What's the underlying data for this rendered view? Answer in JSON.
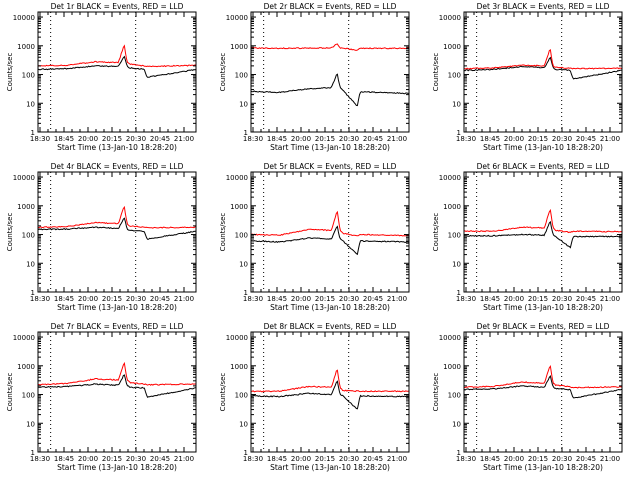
{
  "chart_data": [
    {
      "type": "line",
      "title": "Det 1r BLACK = Events, RED = LLD",
      "xlabel": "Start Time (13-Jan-10 18:28:20)",
      "ylabel": "Counts/sec",
      "yscale": "log",
      "ylim": [
        1,
        15000
      ],
      "xlim": [
        18.5,
        21.25
      ],
      "x_tick_labels": [
        "18:30",
        "18:45",
        "20:00",
        "20:15",
        "20:30",
        "20:45",
        "21:00"
      ],
      "y_tick_labels": [
        "1",
        "10",
        "100",
        "1000",
        "10000"
      ],
      "vertical_markers": [
        18.72,
        20.2
      ],
      "series": [
        {
          "name": "Events",
          "color": "#000000",
          "x": [
            18.5,
            19.0,
            19.5,
            19.9,
            20.0,
            20.05,
            20.1,
            20.35,
            20.4,
            21.25
          ],
          "y": [
            150,
            160,
            200,
            190,
            450,
            190,
            170,
            150,
            80,
            150
          ]
        },
        {
          "name": "LLD",
          "color": "#ff0000",
          "x": [
            18.5,
            19.0,
            19.5,
            19.9,
            20.0,
            20.05,
            20.1,
            20.35,
            20.4,
            21.25
          ],
          "y": [
            200,
            210,
            280,
            260,
            1100,
            260,
            230,
            200,
            190,
            210
          ]
        }
      ]
    },
    {
      "type": "line",
      "title": "Det 2r BLACK = Events, RED = LLD",
      "xlabel": "Start Time (13-Jan-10 18:28:20)",
      "ylabel": "Counts/sec",
      "yscale": "log",
      "ylim": [
        1,
        15000
      ],
      "xlim": [
        18.5,
        21.25
      ],
      "x_tick_labels": [
        "18:30",
        "18:45",
        "20:00",
        "20:15",
        "20:30",
        "20:45",
        "21:00"
      ],
      "y_tick_labels": [
        "1",
        "10",
        "100",
        "1000",
        "10000"
      ],
      "vertical_markers": [
        18.72,
        20.2
      ],
      "series": [
        {
          "name": "Events",
          "color": "#000000",
          "x": [
            18.5,
            19.0,
            19.5,
            19.9,
            20.0,
            20.05,
            20.1,
            20.35,
            20.4,
            21.25
          ],
          "y": [
            26,
            24,
            32,
            35,
            110,
            35,
            28,
            8,
            25,
            22
          ]
        },
        {
          "name": "LLD",
          "color": "#ff0000",
          "x": [
            18.5,
            19.0,
            19.5,
            19.9,
            20.0,
            20.05,
            20.1,
            20.35,
            20.4,
            21.25
          ],
          "y": [
            850,
            820,
            830,
            840,
            1200,
            840,
            830,
            700,
            820,
            820
          ]
        }
      ]
    },
    {
      "type": "line",
      "title": "Det 3r BLACK = Events, RED = LLD",
      "xlabel": "Start Time (13-Jan-10 18:28:20)",
      "ylabel": "Counts/sec",
      "yscale": "log",
      "ylim": [
        1,
        15000
      ],
      "xlim": [
        18.5,
        21.25
      ],
      "x_tick_labels": [
        "18:30",
        "18:45",
        "20:00",
        "20:15",
        "20:30",
        "20:45",
        "21:00"
      ],
      "y_tick_labels": [
        "1",
        "10",
        "100",
        "1000",
        "10000"
      ],
      "vertical_markers": [
        18.72,
        20.2
      ],
      "series": [
        {
          "name": "Events",
          "color": "#000000",
          "x": [
            18.5,
            19.0,
            19.5,
            19.9,
            20.0,
            20.05,
            20.1,
            20.35,
            20.4,
            21.25
          ],
          "y": [
            140,
            150,
            190,
            170,
            400,
            170,
            150,
            140,
            70,
            140
          ]
        },
        {
          "name": "LLD",
          "color": "#ff0000",
          "x": [
            18.5,
            19.0,
            19.5,
            19.9,
            20.0,
            20.05,
            20.1,
            20.35,
            20.4,
            21.25
          ],
          "y": [
            160,
            170,
            210,
            200,
            800,
            200,
            180,
            165,
            160,
            165
          ]
        }
      ]
    },
    {
      "type": "line",
      "title": "Det 4r BLACK = Events, RED = LLD",
      "xlabel": "Start Time (13-Jan-10 18:28:20)",
      "ylabel": "Counts/sec",
      "yscale": "log",
      "ylim": [
        1,
        15000
      ],
      "xlim": [
        18.5,
        21.25
      ],
      "x_tick_labels": [
        "18:30",
        "18:45",
        "20:00",
        "20:15",
        "20:30",
        "20:45",
        "21:00"
      ],
      "y_tick_labels": [
        "1",
        "10",
        "100",
        "1000",
        "10000"
      ],
      "vertical_markers": [
        18.72,
        20.2
      ],
      "series": [
        {
          "name": "Events",
          "color": "#000000",
          "x": [
            18.5,
            19.0,
            19.5,
            19.9,
            20.0,
            20.05,
            20.1,
            20.35,
            20.4,
            21.25
          ],
          "y": [
            150,
            155,
            180,
            160,
            400,
            160,
            140,
            130,
            70,
            130
          ]
        },
        {
          "name": "LLD",
          "color": "#ff0000",
          "x": [
            18.5,
            19.0,
            19.5,
            19.9,
            20.0,
            20.05,
            20.1,
            20.35,
            20.4,
            21.25
          ],
          "y": [
            180,
            190,
            260,
            240,
            1000,
            240,
            200,
            180,
            170,
            180
          ]
        }
      ]
    },
    {
      "type": "line",
      "title": "Det 5r BLACK = Events, RED = LLD",
      "xlabel": "Start Time (13-Jan-10 18:28:20)",
      "ylabel": "Counts/sec",
      "yscale": "log",
      "ylim": [
        1,
        15000
      ],
      "xlim": [
        18.5,
        21.25
      ],
      "x_tick_labels": [
        "18:30",
        "18:45",
        "20:00",
        "20:15",
        "20:30",
        "20:45",
        "21:00"
      ],
      "y_tick_labels": [
        "1",
        "10",
        "100",
        "1000",
        "10000"
      ],
      "vertical_markers": [
        18.72,
        20.2
      ],
      "series": [
        {
          "name": "Events",
          "color": "#000000",
          "x": [
            18.5,
            19.0,
            19.5,
            19.9,
            20.0,
            20.05,
            20.1,
            20.35,
            20.4,
            21.25
          ],
          "y": [
            60,
            55,
            75,
            70,
            200,
            70,
            60,
            20,
            60,
            55
          ]
        },
        {
          "name": "LLD",
          "color": "#ff0000",
          "x": [
            18.5,
            19.0,
            19.5,
            19.9,
            20.0,
            20.05,
            20.1,
            20.35,
            20.4,
            21.25
          ],
          "y": [
            100,
            95,
            150,
            140,
            700,
            140,
            110,
            90,
            100,
            90
          ]
        }
      ]
    },
    {
      "type": "line",
      "title": "Det 6r BLACK = Events, RED = LLD",
      "xlabel": "Start Time (13-Jan-10 18:28:20)",
      "ylabel": "Counts/sec",
      "yscale": "log",
      "ylim": [
        1,
        15000
      ],
      "xlim": [
        18.5,
        21.25
      ],
      "x_tick_labels": [
        "18:30",
        "18:45",
        "20:00",
        "20:15",
        "20:30",
        "20:45",
        "21:00"
      ],
      "y_tick_labels": [
        "1",
        "10",
        "100",
        "1000",
        "10000"
      ],
      "vertical_markers": [
        18.72,
        20.2
      ],
      "series": [
        {
          "name": "Events",
          "color": "#000000",
          "x": [
            18.5,
            19.0,
            19.5,
            19.9,
            20.0,
            20.05,
            20.1,
            20.35,
            20.4,
            21.25
          ],
          "y": [
            90,
            90,
            100,
            95,
            300,
            95,
            85,
            35,
            85,
            85
          ]
        },
        {
          "name": "LLD",
          "color": "#ff0000",
          "x": [
            18.5,
            19.0,
            19.5,
            19.9,
            20.0,
            20.05,
            20.1,
            20.35,
            20.4,
            21.25
          ],
          "y": [
            130,
            130,
            180,
            170,
            800,
            170,
            140,
            120,
            130,
            125
          ]
        }
      ]
    },
    {
      "type": "line",
      "title": "Det 7r BLACK = Events, RED = LLD",
      "xlabel": "Start Time (13-Jan-10 18:28:20)",
      "ylabel": "Counts/sec",
      "yscale": "log",
      "ylim": [
        1,
        15000
      ],
      "xlim": [
        18.5,
        21.25
      ],
      "x_tick_labels": [
        "18:30",
        "18:45",
        "20:00",
        "20:15",
        "20:30",
        "20:45",
        "21:00"
      ],
      "y_tick_labels": [
        "1",
        "10",
        "100",
        "1000",
        "10000"
      ],
      "vertical_markers": [
        18.72,
        20.2
      ],
      "series": [
        {
          "name": "Events",
          "color": "#000000",
          "x": [
            18.5,
            19.0,
            19.5,
            19.9,
            20.0,
            20.05,
            20.1,
            20.35,
            20.4,
            21.25
          ],
          "y": [
            180,
            190,
            230,
            210,
            500,
            210,
            180,
            170,
            80,
            170
          ]
        },
        {
          "name": "LLD",
          "color": "#ff0000",
          "x": [
            18.5,
            19.0,
            19.5,
            19.9,
            20.0,
            20.05,
            20.1,
            20.35,
            20.4,
            21.25
          ],
          "y": [
            220,
            240,
            350,
            320,
            1300,
            320,
            260,
            230,
            220,
            230
          ]
        }
      ]
    },
    {
      "type": "line",
      "title": "Det 8r BLACK = Events, RED = LLD",
      "xlabel": "Start Time (13-Jan-10 18:28:20)",
      "ylabel": "Counts/sec",
      "yscale": "log",
      "ylim": [
        1,
        15000
      ],
      "xlim": [
        18.5,
        21.25
      ],
      "x_tick_labels": [
        "18:30",
        "18:45",
        "20:00",
        "20:15",
        "20:30",
        "20:45",
        "21:00"
      ],
      "y_tick_labels": [
        "1",
        "10",
        "100",
        "1000",
        "10000"
      ],
      "vertical_markers": [
        18.72,
        20.2
      ],
      "series": [
        {
          "name": "Events",
          "color": "#000000",
          "x": [
            18.5,
            19.0,
            19.5,
            19.9,
            20.0,
            20.05,
            20.1,
            20.35,
            20.4,
            21.25
          ],
          "y": [
            90,
            85,
            110,
            100,
            300,
            100,
            90,
            30,
            90,
            85
          ]
        },
        {
          "name": "LLD",
          "color": "#ff0000",
          "x": [
            18.5,
            19.0,
            19.5,
            19.9,
            20.0,
            20.05,
            20.1,
            20.35,
            20.4,
            21.25
          ],
          "y": [
            130,
            130,
            190,
            180,
            800,
            180,
            140,
            130,
            130,
            130
          ]
        }
      ]
    },
    {
      "type": "line",
      "title": "Det 9r BLACK = Events, RED = LLD",
      "xlabel": "Start Time (13-Jan-10 18:28:20)",
      "ylabel": "Counts/sec",
      "yscale": "log",
      "ylim": [
        1,
        15000
      ],
      "xlim": [
        18.5,
        21.25
      ],
      "x_tick_labels": [
        "18:30",
        "18:45",
        "20:00",
        "20:15",
        "20:30",
        "20:45",
        "21:00"
      ],
      "y_tick_labels": [
        "1",
        "10",
        "100",
        "1000",
        "10000"
      ],
      "vertical_markers": [
        18.72,
        20.2
      ],
      "series": [
        {
          "name": "Events",
          "color": "#000000",
          "x": [
            18.5,
            19.0,
            19.5,
            19.9,
            20.0,
            20.05,
            20.1,
            20.35,
            20.4,
            21.25
          ],
          "y": [
            150,
            155,
            200,
            180,
            450,
            180,
            160,
            150,
            75,
            150
          ]
        },
        {
          "name": "LLD",
          "color": "#ff0000",
          "x": [
            18.5,
            19.0,
            19.5,
            19.9,
            20.0,
            20.05,
            20.1,
            20.35,
            20.4,
            21.25
          ],
          "y": [
            180,
            190,
            270,
            250,
            1100,
            250,
            210,
            185,
            175,
            185
          ]
        }
      ]
    }
  ]
}
